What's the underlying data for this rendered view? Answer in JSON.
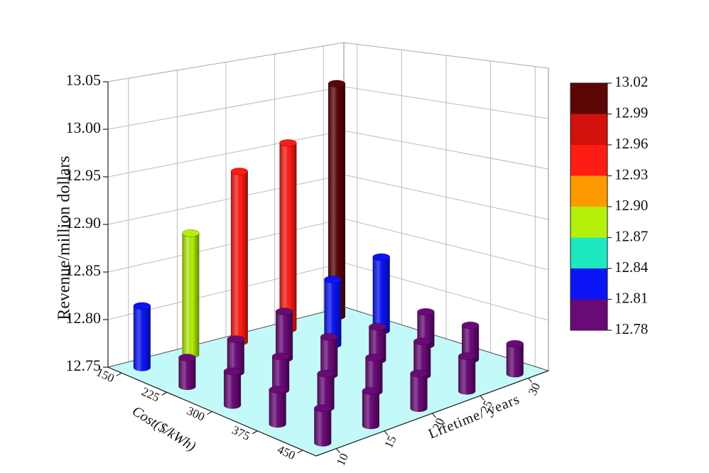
{
  "chart_data": {
    "type": "bar3d",
    "xlabel": "Cost($/kWh)",
    "ylabel": "Lifetime/ years",
    "zlabel": "Revenue/million dollars",
    "x": [
      150,
      225,
      300,
      375,
      450
    ],
    "y": [
      10,
      15,
      20,
      25,
      30
    ],
    "xlim": [
      127.5,
      472.5
    ],
    "ylim": [
      7.9,
      32.1
    ],
    "zlim": [
      12.75,
      13.05
    ],
    "xticks": [
      150,
      225,
      300,
      375,
      450
    ],
    "yticks": [
      10,
      15,
      20,
      25,
      30
    ],
    "zticks": [
      12.75,
      {
        "value": 12.8,
        "label": "12.80"
      },
      12.85,
      {
        "value": 12.9,
        "label": "12.90"
      },
      12.95,
      {
        "value": 13,
        "label": "13.00"
      },
      13.05
    ],
    "values": [
      [
        12.815,
        12.88,
        12.935,
        12.955,
        13.01
      ],
      [
        12.78,
        12.785,
        12.8,
        12.82,
        12.83
      ],
      [
        12.785,
        12.785,
        12.79,
        12.785,
        12.785
      ],
      [
        12.785,
        12.785,
        12.785,
        12.785,
        12.785
      ],
      [
        12.785,
        12.785,
        12.785,
        12.785,
        12.78
      ]
    ],
    "colorbar": {
      "levels": [
        12.78,
        12.81,
        12.84,
        12.87,
        {
          "value": 12.9,
          "label": "12.90"
        },
        12.93,
        12.96,
        12.99,
        13.02
      ],
      "colors": [
        "#6a0a78",
        "#0a14f5",
        "#1ee8c0",
        "#b4f00a",
        "#ff9a00",
        "#ff1c14",
        "#d2100c",
        "#5c0606"
      ]
    },
    "floor_color": "#c4f9f9",
    "grid": true
  }
}
